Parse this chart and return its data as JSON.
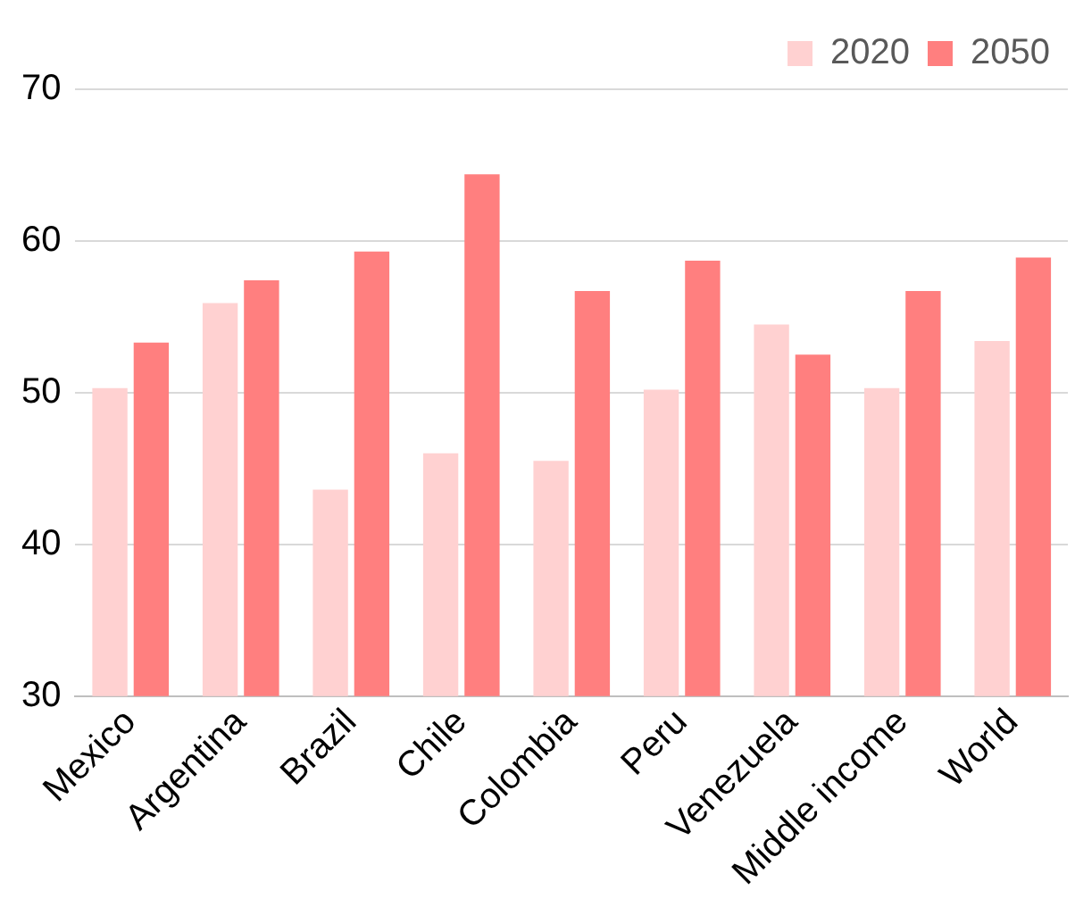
{
  "chart_data": {
    "type": "bar",
    "categories": [
      "Mexico",
      "Argentina",
      "Brazil",
      "Chile",
      "Colombia",
      "Peru",
      "Venezuela",
      "Middle income",
      "World"
    ],
    "series": [
      {
        "name": "2020",
        "color": "#ffd1d1",
        "values": [
          50.3,
          55.9,
          43.6,
          46.0,
          45.5,
          50.2,
          54.5,
          50.3,
          53.4
        ]
      },
      {
        "name": "2050",
        "color": "#ff7f7f",
        "values": [
          53.3,
          57.4,
          59.3,
          64.4,
          56.7,
          58.7,
          52.5,
          56.7,
          58.9
        ]
      }
    ],
    "ylim": [
      30,
      70
    ],
    "yticks": [
      30,
      40,
      50,
      60,
      70
    ],
    "grid": "y",
    "legend": "top right"
  }
}
